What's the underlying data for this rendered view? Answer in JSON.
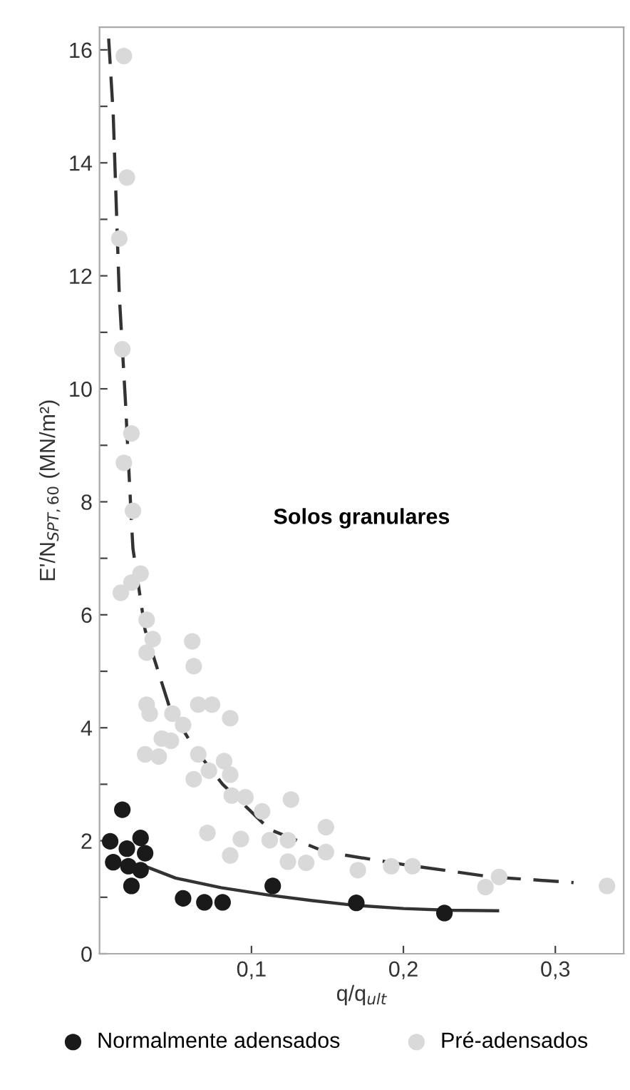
{
  "chart_data": {
    "type": "scatter",
    "xlabel": "q/q$_{ult}$",
    "ylabel": "E'/N$_{SPT,60}$ (MN/m²)",
    "annotations": [
      "Solos granulares"
    ],
    "xlim": [
      0,
      0.345
    ],
    "xticks": [
      {
        "value": 0.1,
        "label": "0,1"
      },
      {
        "value": 0.2,
        "label": "0,2"
      },
      {
        "value": 0.3,
        "label": "0,3"
      }
    ],
    "ylim": [
      0,
      16.4
    ],
    "yticks": [
      0,
      {
        "value": 1,
        "label": null
      },
      2,
      {
        "value": 3,
        "label": null
      },
      4,
      {
        "value": 5,
        "label": null
      },
      6,
      {
        "value": 7,
        "label": null
      },
      8,
      {
        "value": 9,
        "label": null
      },
      10,
      {
        "value": 11,
        "label": null
      },
      12,
      {
        "value": 13,
        "label": null
      },
      14,
      {
        "value": 15,
        "label": null
      },
      16
    ],
    "grid": false,
    "legend": "bottom",
    "marker": "circle",
    "series": [
      {
        "name": "Normalmente adensados",
        "color": "#1a1a1a",
        "x": [
          0.007,
          0.015,
          0.009,
          0.018,
          0.027,
          0.03,
          0.019,
          0.027,
          0.021,
          0.055,
          0.069,
          0.081,
          0.114,
          0.169,
          0.227
        ],
        "values": [
          1.99,
          2.55,
          1.62,
          1.86,
          2.05,
          1.78,
          1.55,
          1.48,
          1.2,
          0.98,
          0.91,
          0.91,
          1.2,
          0.9,
          0.72
        ]
      },
      {
        "name": "Pré-adensados",
        "color": "#d9d9d9",
        "x": [
          0.016,
          0.018,
          0.013,
          0.015,
          0.021,
          0.016,
          0.022,
          0.014,
          0.021,
          0.027,
          0.031,
          0.035,
          0.031,
          0.061,
          0.062,
          0.031,
          0.033,
          0.048,
          0.055,
          0.065,
          0.074,
          0.086,
          0.041,
          0.047,
          0.03,
          0.039,
          0.065,
          0.062,
          0.072,
          0.082,
          0.086,
          0.087,
          0.096,
          0.107,
          0.126,
          0.071,
          0.093,
          0.112,
          0.124,
          0.149,
          0.086,
          0.124,
          0.136,
          0.149,
          0.17,
          0.192,
          0.206,
          0.254,
          0.263,
          0.334
        ],
        "values": [
          15.89,
          13.74,
          12.66,
          10.7,
          9.21,
          8.69,
          7.84,
          6.39,
          6.57,
          6.73,
          5.91,
          5.57,
          5.33,
          5.53,
          5.09,
          4.41,
          4.25,
          4.25,
          4.05,
          4.41,
          4.41,
          4.17,
          3.81,
          3.77,
          3.53,
          3.49,
          3.53,
          3.09,
          3.24,
          3.41,
          3.17,
          2.8,
          2.77,
          2.52,
          2.73,
          2.14,
          2.03,
          2.01,
          2.01,
          2.24,
          1.74,
          1.63,
          1.61,
          1.8,
          1.48,
          1.55,
          1.55,
          1.18,
          1.36,
          1.2
        ]
      },
      {
        "type": "line",
        "color": "#333333",
        "line_style": "solid",
        "marker": "none",
        "x": [
          0.027,
          0.05,
          0.08,
          0.111,
          0.14,
          0.167,
          0.2,
          0.23,
          0.262
        ],
        "values": [
          1.58,
          1.34,
          1.17,
          1.04,
          0.94,
          0.86,
          0.8,
          0.77,
          0.76
        ]
      },
      {
        "type": "line",
        "color": "#333333",
        "line_style": "dashed",
        "marker": "none",
        "x": [
          0.006,
          0.009,
          0.013,
          0.017,
          0.021,
          0.022,
          0.03,
          0.046,
          0.062,
          0.081,
          0.112,
          0.149,
          0.2,
          0.258,
          0.312
        ],
        "values": [
          16.2,
          14.86,
          11.66,
          9.8,
          7.65,
          7.17,
          5.73,
          4.37,
          3.65,
          3.0,
          2.2,
          1.8,
          1.58,
          1.36,
          1.26
        ]
      }
    ]
  }
}
